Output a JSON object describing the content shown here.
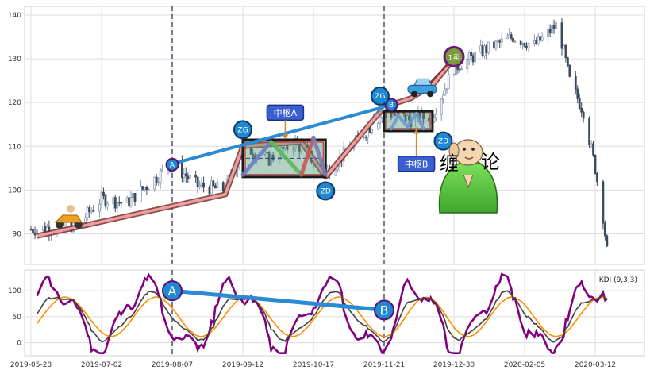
{
  "chart_data": [
    {
      "type": "candlestick",
      "panel": "price",
      "ylim": [
        83,
        142
      ],
      "yticks": [
        90,
        100,
        110,
        120,
        130,
        140
      ],
      "grid": true,
      "x_dates": [
        "2019-05-28",
        "2019-07-02",
        "2019-08-07",
        "2019-09-12",
        "2019-10-17",
        "2019-11-21",
        "2019-12-30",
        "2020-02-05",
        "2020-03-12"
      ],
      "trend_waypoints": [
        {
          "date": "2019-05-31",
          "value": 89.5
        },
        {
          "date": "2019-09-03",
          "value": 99
        },
        {
          "date": "2019-09-12",
          "value": 110
        },
        {
          "date": "2019-10-11",
          "value": 111
        },
        {
          "date": "2019-10-23",
          "value": 103
        },
        {
          "date": "2019-11-21",
          "value": 119
        },
        {
          "date": "2019-12-06",
          "value": 121
        },
        {
          "date": "2019-12-18",
          "value": 124
        },
        {
          "date": "2019-12-30",
          "value": 130
        }
      ],
      "price_path": [
        {
          "date": "2019-05-28",
          "value": 91
        },
        {
          "date": "2019-06-20",
          "value": 92
        },
        {
          "date": "2019-07-02",
          "value": 98
        },
        {
          "date": "2019-07-15",
          "value": 97
        },
        {
          "date": "2019-07-25",
          "value": 101
        },
        {
          "date": "2019-08-07",
          "value": 106
        },
        {
          "date": "2019-08-20",
          "value": 101
        },
        {
          "date": "2019-09-03",
          "value": 100
        },
        {
          "date": "2019-09-12",
          "value": 110
        },
        {
          "date": "2019-09-25",
          "value": 107
        },
        {
          "date": "2019-10-08",
          "value": 111
        },
        {
          "date": "2019-10-23",
          "value": 104
        },
        {
          "date": "2019-11-05",
          "value": 110
        },
        {
          "date": "2019-11-21",
          "value": 118
        },
        {
          "date": "2019-12-06",
          "value": 116
        },
        {
          "date": "2019-12-18",
          "value": 117
        },
        {
          "date": "2019-12-30",
          "value": 128
        },
        {
          "date": "2020-01-15",
          "value": 132
        },
        {
          "date": "2020-01-30",
          "value": 135
        },
        {
          "date": "2020-02-10",
          "value": 133
        },
        {
          "date": "2020-02-22",
          "value": 138
        },
        {
          "date": "2020-02-28",
          "value": 125
        },
        {
          "date": "2020-03-06",
          "value": 118
        },
        {
          "date": "2020-03-12",
          "value": 105
        },
        {
          "date": "2020-03-16",
          "value": 94
        },
        {
          "date": "2020-03-18",
          "value": 86
        }
      ],
      "zhongshu": [
        {
          "label": "中枢A",
          "start": "2019-09-12",
          "end": "2019-10-23",
          "low": 103,
          "high": 111.5
        },
        {
          "label": "中枢B",
          "start": "2019-11-21",
          "end": "2019-12-18",
          "low": 113.5,
          "high": 118
        }
      ],
      "zhongshu_strokes": [
        {
          "from": {
            "date": "2019-09-12",
            "value": 103.5
          },
          "to": {
            "date": "2019-09-26",
            "value": 111
          },
          "color": "#6b7fc7"
        },
        {
          "from": {
            "date": "2019-09-26",
            "value": 111
          },
          "to": {
            "date": "2019-10-11",
            "value": 103.5
          },
          "color": "#59b85a"
        },
        {
          "from": {
            "date": "2019-10-11",
            "value": 103.5
          },
          "to": {
            "date": "2019-10-17",
            "value": 112
          },
          "color": "#c45a5a"
        },
        {
          "from": {
            "date": "2019-10-17",
            "value": 112
          },
          "to": {
            "date": "2019-10-23",
            "value": 103.5
          },
          "color": "#7a7fb5"
        }
      ],
      "zhongshu_b_strokes": [
        {
          "from": {
            "date": "2019-11-25",
            "value": 114
          },
          "to": {
            "date": "2019-11-29",
            "value": 117
          }
        },
        {
          "from": {
            "date": "2019-11-29",
            "value": 117
          },
          "to": {
            "date": "2019-12-04",
            "value": 114.5
          }
        },
        {
          "from": {
            "date": "2019-12-04",
            "value": 114.5
          },
          "to": {
            "date": "2019-12-09",
            "value": 117.5
          }
        },
        {
          "from": {
            "date": "2019-12-09",
            "value": 117.5
          },
          "to": {
            "date": "2019-12-13",
            "value": 114
          }
        }
      ],
      "divergence_line": {
        "from": {
          "date": "2019-08-07",
          "value": 106
        },
        "to": {
          "date": "2019-11-21",
          "value": 119
        },
        "color": "#2a8ad4"
      },
      "markers": [
        {
          "label": "A",
          "date": "2019-08-07",
          "value": 105.8
        },
        {
          "label": "B",
          "date": "2019-11-25",
          "value": 119.5
        },
        {
          "label": "ZG",
          "date": "2019-09-12",
          "value": 113.8
        },
        {
          "label": "ZG",
          "date": "2019-11-19",
          "value": 121.5
        },
        {
          "label": "ZD",
          "date": "2019-10-23",
          "value": 99.8
        },
        {
          "label": "ZD",
          "date": "2019-12-24",
          "value": 111.2
        }
      ],
      "annotations": [
        {
          "label": "中枢A",
          "date": "2019-10-03",
          "value": 117.7,
          "arrow_to": 111.7
        },
        {
          "label": "中枢B",
          "date": "2019-12-09",
          "value": 106,
          "arrow_to": 113.8
        }
      ],
      "sell_marker": {
        "label": "1卖",
        "date": "2019-12-30",
        "value": 130.5
      },
      "vertical_markers": [
        "2019-08-07",
        "2019-11-21"
      ],
      "watermark_text": "缠  论"
    },
    {
      "type": "line",
      "panel": "indicator",
      "title": "KDJ (9,3,3)",
      "ylim": [
        -25,
        140
      ],
      "yticks": [
        0,
        50,
        100
      ],
      "grid": true,
      "x": [
        "2019-05-28",
        "2019-07-02",
        "2019-08-07",
        "2019-09-12",
        "2019-10-17",
        "2019-11-21",
        "2019-12-30",
        "2020-02-05",
        "2020-03-12"
      ],
      "series_colors": {
        "J": "#800080",
        "D": "#ff8c00",
        "K": "#404040"
      },
      "divergence_line": {
        "from": {
          "date": "2019-08-07",
          "value": 100
        },
        "to": {
          "date": "2019-11-21",
          "value": 63
        },
        "color": "#2a8ad4"
      },
      "markers": [
        {
          "label": "A",
          "date": "2019-08-07",
          "value": 100
        },
        {
          "label": "B",
          "date": "2019-11-21",
          "value": 63
        }
      ]
    }
  ]
}
